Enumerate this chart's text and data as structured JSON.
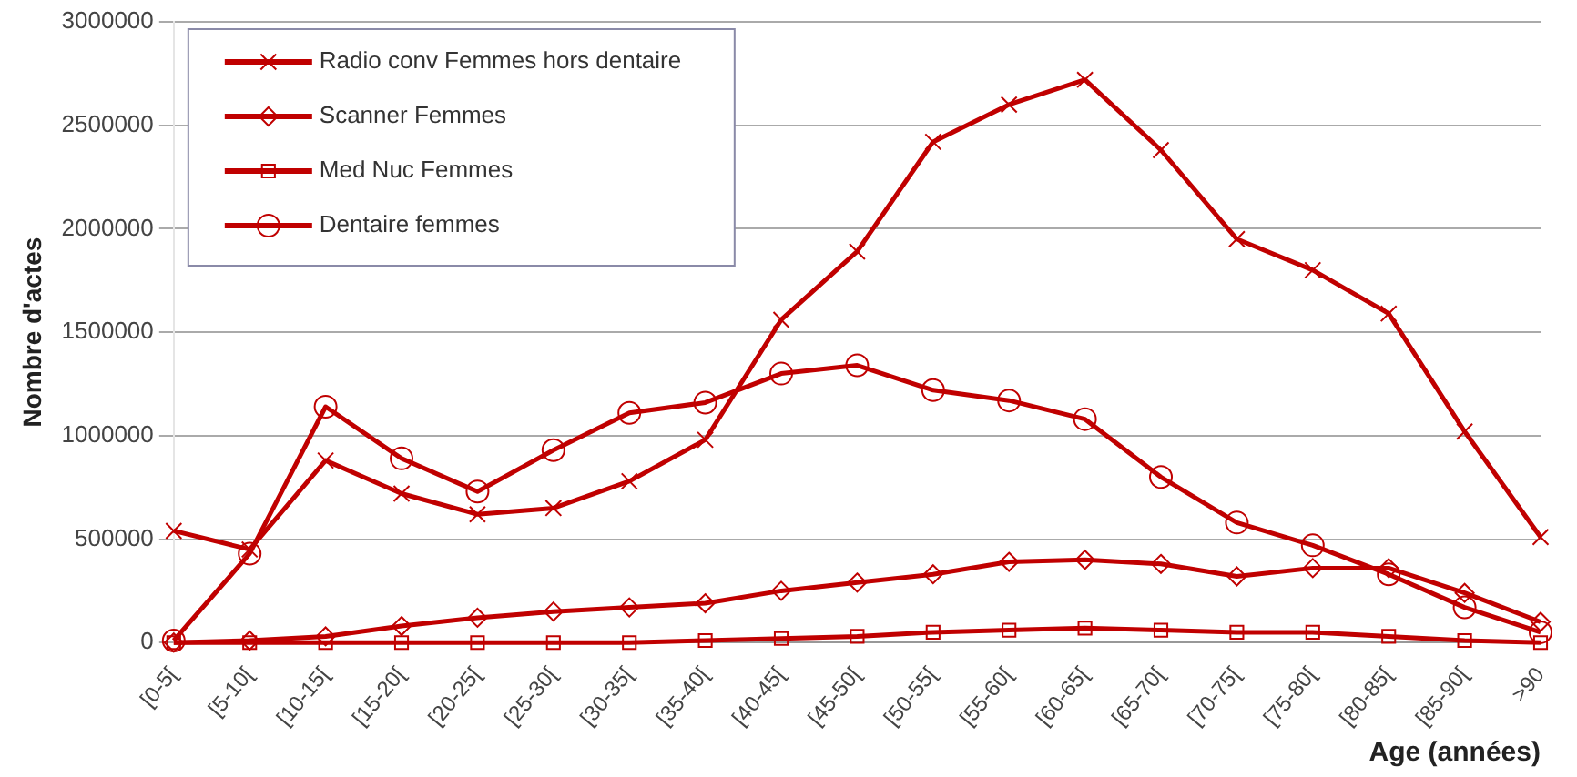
{
  "chart_data": {
    "type": "line",
    "xlabel": "Age (années)",
    "ylabel": "Nombre d'actes",
    "categories": [
      "[0-5[",
      "[5-10[",
      "[10-15[",
      "[15-20[",
      "[20-25[",
      "[25-30[",
      "[30-35[",
      "[35-40[",
      "[40-45[",
      "[45-50[",
      "[50-55[",
      "[55-60[",
      "[60-65[",
      "[65-70[",
      "[70-75[",
      "[75-80[",
      "[80-85[",
      "[85-90[",
      ">90"
    ],
    "series": [
      {
        "name": "Radio conv Femmes hors dentaire",
        "color": "#c00000",
        "marker": "cross",
        "values": [
          540000,
          450000,
          880000,
          720000,
          620000,
          650000,
          780000,
          980000,
          1560000,
          1890000,
          2420000,
          2600000,
          2720000,
          2380000,
          1950000,
          1800000,
          1590000,
          1020000,
          510000
        ]
      },
      {
        "name": "Scanner Femmes",
        "color": "#c00000",
        "marker": "diamond",
        "values": [
          0,
          10000,
          30000,
          80000,
          120000,
          150000,
          170000,
          190000,
          250000,
          290000,
          330000,
          390000,
          400000,
          380000,
          320000,
          360000,
          360000,
          240000,
          100000
        ]
      },
      {
        "name": "Med Nuc Femmes",
        "color": "#c00000",
        "marker": "square",
        "values": [
          0,
          0,
          0,
          0,
          0,
          0,
          0,
          10000,
          20000,
          30000,
          50000,
          60000,
          70000,
          60000,
          50000,
          50000,
          30000,
          10000,
          0
        ]
      },
      {
        "name": "Dentaire femmes",
        "color": "#c00000",
        "marker": "circle",
        "values": [
          10000,
          430000,
          1140000,
          890000,
          730000,
          930000,
          1110000,
          1160000,
          1300000,
          1340000,
          1220000,
          1170000,
          1080000,
          800000,
          580000,
          470000,
          330000,
          170000,
          50000
        ]
      }
    ],
    "ylim": [
      0,
      3000000
    ],
    "yticks": [
      0,
      500000,
      1000000,
      1500000,
      2000000,
      2500000,
      3000000
    ],
    "grid": "y",
    "legend": "top left",
    "line_style": "solid"
  }
}
